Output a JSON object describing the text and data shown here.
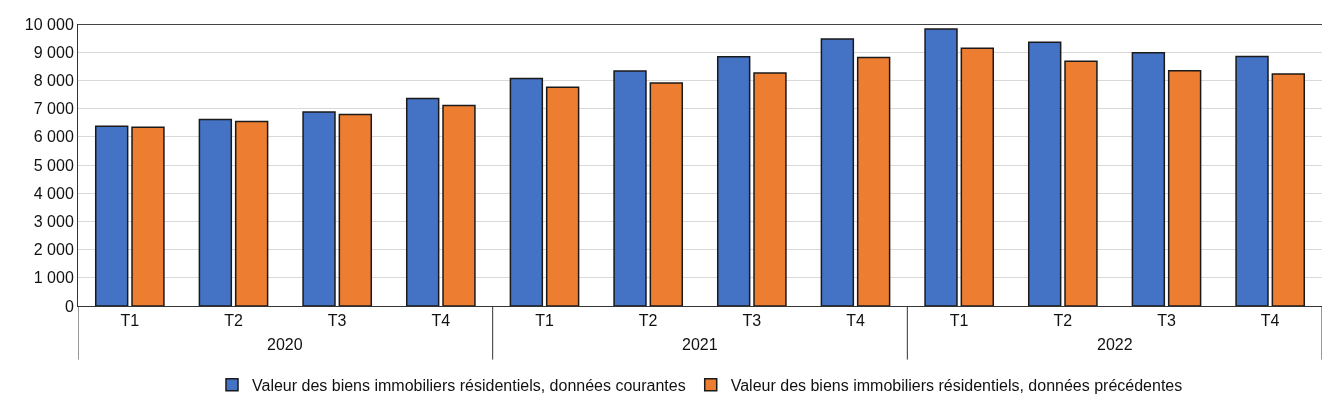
{
  "chart_data": {
    "type": "bar",
    "categories": [
      "T1",
      "T2",
      "T3",
      "T4",
      "T1",
      "T2",
      "T3",
      "T4",
      "T1",
      "T2",
      "T3",
      "T4"
    ],
    "series": [
      {
        "name": "Valeur des biens immobiliers résidentiels, données courantes",
        "color": "#4472c4",
        "values": [
          6370,
          6610,
          6880,
          7360,
          8070,
          8330,
          8840,
          9470,
          9820,
          9350,
          8980,
          8850
        ]
      },
      {
        "name": "Valeur des biens immobiliers résidentiels, données précédentes",
        "color": "#ed7d31",
        "values": [
          6340,
          6540,
          6790,
          7110,
          7760,
          7910,
          8260,
          8810,
          9140,
          8680,
          8340,
          8230
        ]
      }
    ],
    "annotations": [
      "2020",
      "2021",
      "2022"
    ],
    "ylim": [
      0,
      10000
    ],
    "yticks": [
      0,
      {
        "value": 1000,
        "label": "1 000"
      },
      {
        "value": 2000,
        "label": "2 000"
      },
      {
        "value": 3000,
        "label": "3 000"
      },
      {
        "value": 4000,
        "label": "4 000"
      },
      {
        "value": 5000,
        "label": "5 000"
      },
      {
        "value": 6000,
        "label": "6 000"
      },
      {
        "value": 7000,
        "label": "7 000"
      },
      {
        "value": 8000,
        "label": "8 000"
      },
      {
        "value": 9000,
        "label": "9 000"
      },
      {
        "value": 10000,
        "label": "10 000"
      }
    ],
    "grid": "y",
    "legend": "bottom"
  }
}
